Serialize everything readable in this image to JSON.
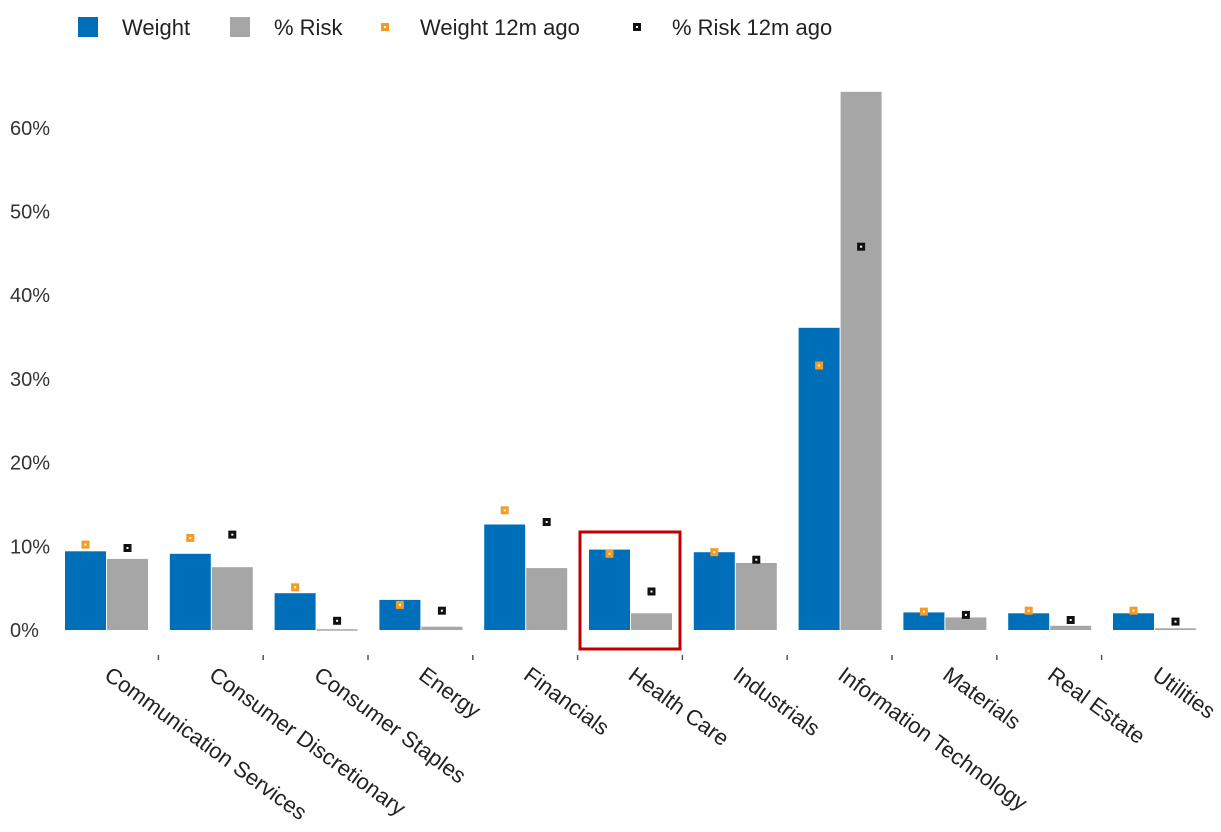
{
  "chart_data": {
    "type": "bar",
    "title": "",
    "xlabel": "",
    "ylabel": "",
    "categories": [
      "Communication Services",
      "Consumer Discretionary",
      "Consumer Staples",
      "Energy",
      "Financials",
      "Health Care",
      "Industrials",
      "Information Technology",
      "Materials",
      "Real Estate",
      "Utilities"
    ],
    "series": [
      {
        "name": "Weight",
        "kind": "bar",
        "color": "#006fba",
        "values": [
          9.4,
          9.1,
          4.4,
          3.6,
          12.6,
          9.6,
          9.3,
          36.1,
          2.1,
          2.0,
          2.0
        ]
      },
      {
        "name": "% Risk",
        "kind": "bar",
        "color": "#a6a6a6",
        "values": [
          8.5,
          7.5,
          0.1,
          0.4,
          7.4,
          2.0,
          8.0,
          64.3,
          1.5,
          0.5,
          0.2
        ]
      },
      {
        "name": "Weight 12m ago",
        "kind": "marker",
        "color": "#f59a23",
        "values": [
          10.2,
          11.0,
          5.1,
          3.0,
          14.3,
          9.1,
          9.3,
          31.6,
          2.2,
          2.3,
          2.3
        ]
      },
      {
        "name": "% Risk 12m ago",
        "kind": "marker",
        "color": "#111111",
        "values": [
          9.8,
          11.4,
          1.1,
          2.3,
          12.9,
          4.6,
          8.4,
          45.8,
          1.8,
          1.2,
          1.0
        ]
      }
    ],
    "yticks": [
      "0%",
      "10%",
      "20%",
      "30%",
      "40%",
      "50%",
      "60%"
    ],
    "ylim": [
      0,
      68
    ],
    "highlighted_category": "Health Care",
    "highlight_color": "#c00000",
    "grid": false,
    "legend_position": "top-left"
  }
}
